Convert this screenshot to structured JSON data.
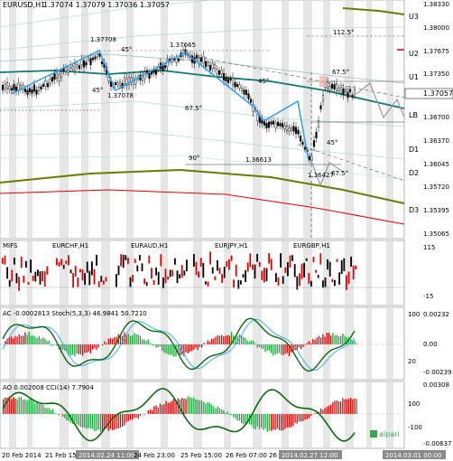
{
  "header": {
    "symbol": "EURUSD,H1",
    "ohlc": "1.37074 1.37079 1.37036 1.37057"
  },
  "price_axis": {
    "ticks": [
      "1.38330",
      "1.38000",
      "1.37675",
      "1.37350",
      "1.37025",
      "1.36700",
      "1.36370",
      "1.36045",
      "1.35720",
      "1.35395",
      "1.35065"
    ],
    "current": "1.37057",
    "levels": [
      "U3",
      "U2",
      "U1",
      "LB",
      "D1",
      "D2",
      "D3"
    ]
  },
  "annotations": {
    "high1": "1.37708",
    "high2": "1.37665",
    "low1": "1.37078",
    "low2": "1.36613",
    "low3": "1.36427",
    "ang1": "45°",
    "ang2": "45°",
    "ang3": "45°",
    "ang4": "67.5°",
    "ang5": "67.5°",
    "ang6": "90°",
    "ang7": "45°",
    "ang8": "67.5°",
    "ang9": "112.5°"
  },
  "pairs_panel": {
    "title": "MIFS",
    "pairs": [
      "EURCHF,H1",
      "EURAUD,H1",
      "EURJPY,H1",
      "EURGBP,H1"
    ],
    "axis": [
      "115",
      "-15"
    ]
  },
  "ac_panel": {
    "title": "AC -0.0002813  Stoch(5,3,3) 46.9841 50.7210",
    "axis": [
      "100",
      "0.00232",
      "0.00",
      "20",
      "-0.00239"
    ]
  },
  "ao_panel": {
    "title": "AO 0.002008  CCI(14) 7.7904",
    "axis": [
      "0.00308",
      "100",
      "-100",
      "-0.00637"
    ],
    "brand": "alpari"
  },
  "time_axis": {
    "labels": [
      "20 Feb 2014",
      "21 Feb 15:00",
      "24 Feb 23:00",
      "25 Feb 15:00",
      "26 Feb 07:00",
      "26"
    ],
    "highlighted": [
      "2014.02.24 11:00",
      "2014.02.27 12:00"
    ],
    "last": "2014.03.01 00:00"
  },
  "colors": {
    "bull": "#1e90ff",
    "bear": "#e60000",
    "ma": "#0f7a6e",
    "olive": "#6b7a00",
    "gann": "#2a9df4"
  }
}
